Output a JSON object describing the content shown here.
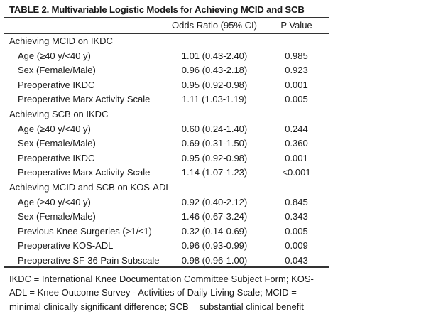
{
  "title": "TABLE 2. Multivariable Logistic Models for Achieving MCID and SCB",
  "headers": {
    "label": "",
    "or": "Odds Ratio (95% CI)",
    "p": "P Value"
  },
  "rows": [
    {
      "label": "Achieving MCID on IKDC",
      "or": "",
      "p": ""
    },
    {
      "label": "Age (≥40 y/<40 y)",
      "or": "1.01 (0.43-2.40)",
      "p": "0.985"
    },
    {
      "label": "Sex (Female/Male)",
      "or": "0.96 (0.43-2.18)",
      "p": "0.923"
    },
    {
      "label": "Preoperative IKDC",
      "or": "0.95 (0.92-0.98)",
      "p": "0.001"
    },
    {
      "label": "Preoperative Marx Activity Scale",
      "or": "1.11 (1.03-1.19)",
      "p": "0.005"
    },
    {
      "label": "Achieving SCB on IKDC",
      "or": "",
      "p": ""
    },
    {
      "label": "Age (≥40 y/<40 y)",
      "or": "0.60 (0.24-1.40)",
      "p": "0.244"
    },
    {
      "label": "Sex (Female/Male)",
      "or": "0.69 (0.31-1.50)",
      "p": "0.360"
    },
    {
      "label": "Preoperative IKDC",
      "or": "0.95 (0.92-0.98)",
      "p": "0.001"
    },
    {
      "label": "Preoperative Marx Activity Scale",
      "or": "1.14 (1.07-1.23)",
      "p": "<0.001"
    },
    {
      "label": "Achieving MCID and SCB on KOS-ADL",
      "or": "",
      "p": ""
    },
    {
      "label": "Age (≥40 y/<40 y)",
      "or": "0.92 (0.40-2.12)",
      "p": "0.845"
    },
    {
      "label": "Sex (Female/Male)",
      "or": "1.46 (0.67-3.24)",
      "p": "0.343"
    },
    {
      "label": "Previous Knee Surgeries (>1/≤1)",
      "or": "0.32 (0.14-0.69)",
      "p": "0.005"
    },
    {
      "label": "Preoperative KOS-ADL",
      "or": "0.96 (0.93-0.99)",
      "p": "0.009"
    },
    {
      "label": "Preoperative SF-36 Pain Subscale",
      "or": "0.98 (0.96-1.00)",
      "p": "0.043"
    }
  ],
  "footnote": "IKDC = International Knee Documentation Committee Subject Form; KOS-ADL = Knee Outcome Survey - Activities of Daily Living Scale; MCID = minimal clinically significant difference; SCB = substantial clinical benefit"
}
